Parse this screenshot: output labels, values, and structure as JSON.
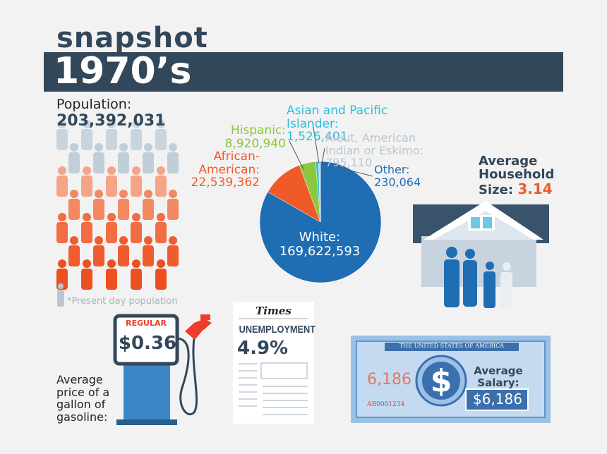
{
  "header": {
    "kicker": "snapshot",
    "title": "1970’s"
  },
  "population": {
    "label": "Population:",
    "value": "203,392,031",
    "note": "*Present day population"
  },
  "chart_data": {
    "type": "pie",
    "categories": [
      "White:",
      "African-American:",
      "Hispanic:",
      "Asian and Pacific Islander:",
      "Aleut, American Indian or Eskimo:",
      "Other:"
    ],
    "values": [
      169622593,
      22539362,
      8920940,
      1526401,
      795110,
      230064
    ],
    "value_labels": [
      "169,622,593",
      "22,539,362",
      "8,920,940",
      "1,526,401",
      "795,110",
      "230,064"
    ],
    "colors": [
      "#1f6db3",
      "#f05a28",
      "#8dc63f",
      "#2bbfdc",
      "#c4d0da",
      "#1f6db3"
    ]
  },
  "household": {
    "label": "Average Household Size:",
    "value": "3.14"
  },
  "gasoline": {
    "sign": "REGULAR",
    "price": "$0.36",
    "label": "Average price of a gallon of gasoline:"
  },
  "newspaper": {
    "masthead": "Times",
    "headline": "UNEMPLOYMENT",
    "value": "4.9%"
  },
  "salary": {
    "banner": "THE UNITED STATES OF AMERICA",
    "bill_value": "6,186",
    "serial": "AB0001234",
    "label": "Average Salary:",
    "value": "$6,186"
  }
}
